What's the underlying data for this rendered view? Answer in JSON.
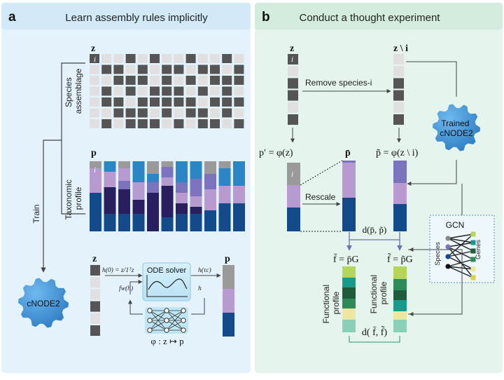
{
  "panel_a": {
    "letter": "a",
    "title": "Learn assembly rules implicitly",
    "z_label": "z",
    "i_label": "i",
    "species_label_1": "Species",
    "species_label_2": "assemblage",
    "p_label": "p",
    "taxonomic_label_1": "Taxonomic",
    "taxonomic_label_2": "profile",
    "train_label": "Train",
    "cnode_label": "cNODE2",
    "ode_solver_label": "ODE solver",
    "h0_eq": "h(0) = z/1ᵀz",
    "htau_eq": "h(τc)",
    "fw_eq": "fw(h)",
    "h_label": "h",
    "phi_eq": "φ : z ↦ p",
    "bottom_z": "z",
    "bottom_p": "p"
  },
  "panel_b": {
    "letter": "b",
    "title": "Conduct a thought experiment",
    "z_label": "z",
    "z_minus_i": "z \\ i",
    "remove_label": "Remove species-i",
    "trained_1": "Trained",
    "trained_2": "cNODE2",
    "p_prime_eq": "p′ = φ(z)",
    "p_bar": "p̄",
    "p_tilde_eq": "p̃ = φ(z \\ i)",
    "i_label": "i",
    "rescale_label": "Rescale",
    "d_p": "d(p̄, p̃)",
    "f_bar_eq": "f̄ = p̄G",
    "f_tilde_eq": "f̃ = p̃G",
    "functional_1": "Functional",
    "functional_2": "profile",
    "d_f": "d( f̄, f̃)",
    "gcn_label": "GCN",
    "gcn_species": "Species",
    "gcn_genes": "Genes"
  },
  "colors": {
    "panel_a_bg": "#e4f3fb",
    "panel_a_header": "#d2eaf7",
    "panel_b_bg": "#e5f4ec",
    "panel_b_header": "#d4ecde",
    "dark_cell": "#555555",
    "light_cell": "#e0e0e0",
    "grey_seg": "#9a9a9a",
    "lilac": "#b79ad0",
    "violet": "#7b73bd",
    "dark_navy": "#2a1f5e",
    "navy": "#124a8a",
    "sky": "#2b86c6",
    "cnode_blue": "#3a90d6"
  },
  "grid_a": [
    [
      0,
      1,
      1,
      0,
      1,
      0,
      1,
      1,
      0,
      1,
      1,
      0,
      1
    ],
    [
      0,
      0,
      0,
      1,
      0,
      1,
      0,
      0,
      1,
      0,
      0,
      1,
      0
    ],
    [
      0,
      1,
      0,
      0,
      0,
      1,
      0,
      1,
      0,
      1,
      0,
      0,
      0
    ],
    [
      0,
      0,
      1,
      0,
      1,
      0,
      0,
      0,
      1,
      0,
      1,
      0,
      1
    ],
    [
      0,
      0,
      0,
      1,
      0,
      0,
      0,
      0,
      0,
      1,
      0,
      0,
      0
    ],
    [
      0,
      1,
      0,
      0,
      0,
      1,
      0,
      1,
      0,
      0,
      1,
      0,
      1
    ],
    [
      0,
      0,
      1,
      0,
      0,
      0,
      1,
      0,
      1,
      0,
      0,
      1,
      0
    ]
  ],
  "taxa_bars": [
    [
      [
        "grey_seg",
        0.1
      ],
      [
        "lilac",
        0.35
      ],
      [
        "navy",
        0.55
      ]
    ],
    [
      [
        "sky",
        0.15
      ],
      [
        "lilac",
        0.22
      ],
      [
        "dark_navy",
        0.38
      ],
      [
        "navy",
        0.25
      ]
    ],
    [
      [
        "grey_seg",
        0.1
      ],
      [
        "lilac",
        0.18
      ],
      [
        "violet",
        0.12
      ],
      [
        "dark_navy",
        0.35
      ],
      [
        "navy",
        0.25
      ]
    ],
    [
      [
        "sky",
        0.3
      ],
      [
        "lilac",
        0.25
      ],
      [
        "dark_navy",
        0.2
      ],
      [
        "navy",
        0.25
      ]
    ],
    [
      [
        "grey_seg",
        0.18
      ],
      [
        "sky",
        0.12
      ],
      [
        "violet",
        0.15
      ],
      [
        "dark_navy",
        0.55
      ]
    ],
    [
      [
        "grey_seg",
        0.08
      ],
      [
        "violet",
        0.15
      ],
      [
        "lilac",
        0.12
      ],
      [
        "dark_navy",
        0.45
      ],
      [
        "navy",
        0.2
      ]
    ],
    [
      [
        "sky",
        0.3
      ],
      [
        "violet",
        0.15
      ],
      [
        "lilac",
        0.15
      ],
      [
        "dark_navy",
        0.15
      ],
      [
        "navy",
        0.25
      ]
    ],
    [
      [
        "sky",
        0.25
      ],
      [
        "violet",
        0.25
      ],
      [
        "lilac",
        0.15
      ],
      [
        "dark_navy",
        0.1
      ],
      [
        "navy",
        0.25
      ]
    ],
    [
      [
        "grey_seg",
        0.18
      ],
      [
        "violet",
        0.22
      ],
      [
        "lilac",
        0.3
      ],
      [
        "navy",
        0.3
      ]
    ],
    [
      [
        "grey_seg",
        0.1
      ],
      [
        "sky",
        0.25
      ],
      [
        "lilac",
        0.25
      ],
      [
        "navy",
        0.4
      ]
    ],
    [
      [
        "sky",
        0.35
      ],
      [
        "lilac",
        0.25
      ],
      [
        "navy",
        0.4
      ]
    ]
  ],
  "func_colors": [
    "#b6d65a",
    "#1a9a8a",
    "#1f5c3c",
    "#2e8b57",
    "#ece8a0",
    "#8ad0b8"
  ]
}
